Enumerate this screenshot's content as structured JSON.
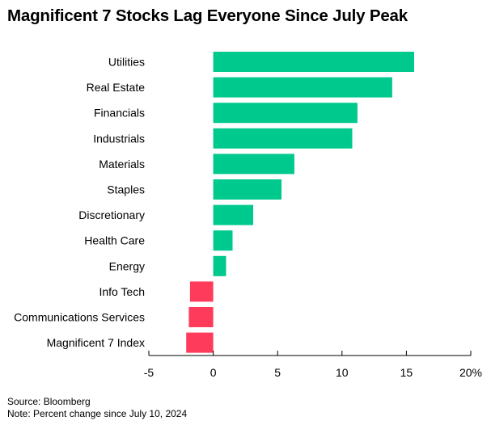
{
  "chart_data": {
    "type": "bar",
    "orientation": "horizontal",
    "title": "Magnificent 7 Stocks Lag Everyone Since July Peak",
    "categories": [
      "Utilities",
      "Real Estate",
      "Financials",
      "Industrials",
      "Materials",
      "Staples",
      "Discretionary",
      "Health Care",
      "Energy",
      "Info Tech",
      "Communications Services",
      "Magnificent 7 Index"
    ],
    "values": [
      15.6,
      13.9,
      11.2,
      10.8,
      6.3,
      5.3,
      3.1,
      1.5,
      1.0,
      -1.8,
      -1.9,
      -2.1
    ],
    "xlim": [
      -5,
      20
    ],
    "xticks": [
      "-5",
      "0",
      "5",
      "10",
      "15",
      "20%"
    ],
    "grid": false,
    "colors": {
      "positive": "#00c98e",
      "negative": "#ff3b5c",
      "axis": "#000000"
    }
  },
  "footer": {
    "source": "Source: Bloomberg",
    "note": "Note: Percent change since July 10, 2024"
  }
}
